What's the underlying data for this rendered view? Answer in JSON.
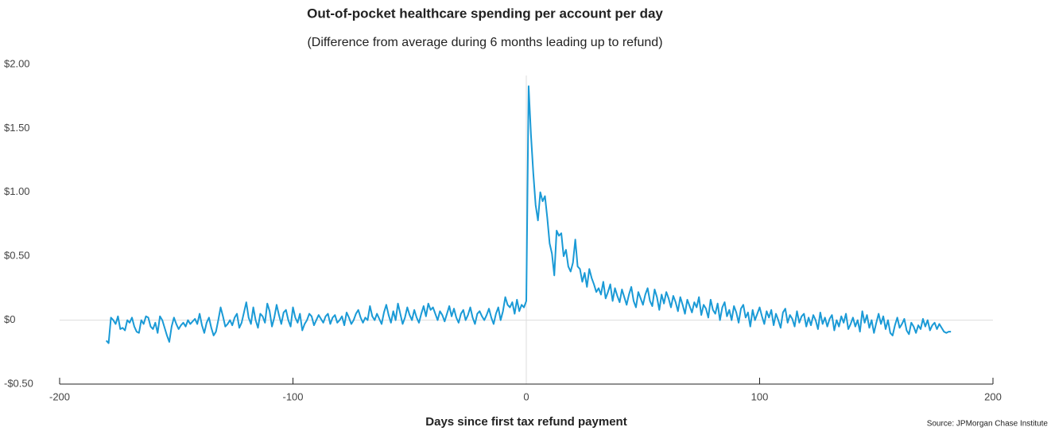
{
  "chart_data": {
    "type": "line",
    "title": "Out-of-pocket healthcare spending per account per day",
    "subtitle": "(Difference from average during 6 months leading up to refund)",
    "x_label": "Days since first tax refund payment",
    "source": "Source: JPMorgan Chase Institute",
    "xlim": [
      -200,
      200
    ],
    "xticks": [
      -200,
      -100,
      0,
      100,
      200
    ],
    "ylim": [
      -0.5,
      2.0
    ],
    "yticks": [
      {
        "value": 2.0,
        "label": "$2.00"
      },
      {
        "value": 1.5,
        "label": "$1.50"
      },
      {
        "value": 1.0,
        "label": "$1.00"
      },
      {
        "value": 0.5,
        "label": "$0.50"
      },
      {
        "value": 0,
        "label": "$0"
      },
      {
        "value": -0.5,
        "label": "-$0.50"
      }
    ],
    "color": "#1a9ad6",
    "x": [
      -180,
      -179,
      -178,
      -177,
      -176,
      -175,
      -174,
      -173,
      -172,
      -171,
      -170,
      -169,
      -168,
      -167,
      -166,
      -165,
      -164,
      -163,
      -162,
      -161,
      -160,
      -159,
      -158,
      -157,
      -156,
      -155,
      -154,
      -153,
      -152,
      -151,
      -150,
      -149,
      -148,
      -147,
      -146,
      -145,
      -144,
      -143,
      -142,
      -141,
      -140,
      -139,
      -138,
      -137,
      -136,
      -135,
      -134,
      -133,
      -132,
      -131,
      -130,
      -129,
      -128,
      -127,
      -126,
      -125,
      -124,
      -123,
      -122,
      -121,
      -120,
      -119,
      -118,
      -117,
      -116,
      -115,
      -114,
      -113,
      -112,
      -111,
      -110,
      -109,
      -108,
      -107,
      -106,
      -105,
      -104,
      -103,
      -102,
      -101,
      -100,
      -99,
      -98,
      -97,
      -96,
      -95,
      -94,
      -93,
      -92,
      -91,
      -90,
      -89,
      -88,
      -87,
      -86,
      -85,
      -84,
      -83,
      -82,
      -81,
      -80,
      -79,
      -78,
      -77,
      -76,
      -75,
      -74,
      -73,
      -72,
      -71,
      -70,
      -69,
      -68,
      -67,
      -66,
      -65,
      -64,
      -63,
      -62,
      -61,
      -60,
      -59,
      -58,
      -57,
      -56,
      -55,
      -54,
      -53,
      -52,
      -51,
      -50,
      -49,
      -48,
      -47,
      -46,
      -45,
      -44,
      -43,
      -42,
      -41,
      -40,
      -39,
      -38,
      -37,
      -36,
      -35,
      -34,
      -33,
      -32,
      -31,
      -30,
      -29,
      -28,
      -27,
      -26,
      -25,
      -24,
      -23,
      -22,
      -21,
      -20,
      -19,
      -18,
      -17,
      -16,
      -15,
      -14,
      -13,
      -12,
      -11,
      -10,
      -9,
      -8,
      -7,
      -6,
      -5,
      -4,
      -3,
      -2,
      -1,
      0,
      1,
      2,
      3,
      4,
      5,
      6,
      7,
      8,
      9,
      10,
      11,
      12,
      13,
      14,
      15,
      16,
      17,
      18,
      19,
      20,
      21,
      22,
      23,
      24,
      25,
      26,
      27,
      28,
      29,
      30,
      31,
      32,
      33,
      34,
      35,
      36,
      37,
      38,
      39,
      40,
      41,
      42,
      43,
      44,
      45,
      46,
      47,
      48,
      49,
      50,
      51,
      52,
      53,
      54,
      55,
      56,
      57,
      58,
      59,
      60,
      61,
      62,
      63,
      64,
      65,
      66,
      67,
      68,
      69,
      70,
      71,
      72,
      73,
      74,
      75,
      76,
      77,
      78,
      79,
      80,
      81,
      82,
      83,
      84,
      85,
      86,
      87,
      88,
      89,
      90,
      91,
      92,
      93,
      94,
      95,
      96,
      97,
      98,
      99,
      100,
      101,
      102,
      103,
      104,
      105,
      106,
      107,
      108,
      109,
      110,
      111,
      112,
      113,
      114,
      115,
      116,
      117,
      118,
      119,
      120,
      121,
      122,
      123,
      124,
      125,
      126,
      127,
      128,
      129,
      130,
      131,
      132,
      133,
      134,
      135,
      136,
      137,
      138,
      139,
      140,
      141,
      142,
      143,
      144,
      145,
      146,
      147,
      148,
      149,
      150,
      151,
      152,
      153,
      154,
      155,
      156,
      157,
      158,
      159,
      160,
      161,
      162,
      163,
      164,
      165,
      166,
      167,
      168,
      169,
      170,
      171,
      172,
      173,
      174,
      175,
      176,
      177,
      178,
      179,
      180,
      181,
      182
    ],
    "values": [
      -0.16,
      -0.18,
      0.02,
      0.0,
      -0.03,
      0.03,
      -0.07,
      -0.06,
      -0.08,
      0.0,
      -0.02,
      0.02,
      -0.05,
      -0.09,
      -0.1,
      0.0,
      -0.03,
      0.03,
      0.02,
      -0.05,
      -0.07,
      -0.02,
      -0.1,
      0.03,
      0.0,
      -0.06,
      -0.12,
      -0.17,
      -0.05,
      0.02,
      -0.03,
      -0.07,
      -0.04,
      -0.02,
      -0.05,
      0.0,
      -0.03,
      -0.01,
      0.01,
      -0.03,
      0.05,
      -0.04,
      -0.1,
      -0.02,
      0.02,
      -0.06,
      -0.12,
      -0.09,
      0.0,
      0.1,
      0.03,
      -0.05,
      -0.03,
      0.0,
      -0.04,
      0.02,
      0.05,
      -0.06,
      -0.02,
      0.06,
      0.14,
      0.02,
      -0.03,
      0.1,
      0.0,
      -0.06,
      0.05,
      0.03,
      -0.02,
      0.13,
      0.07,
      -0.05,
      0.02,
      0.12,
      0.04,
      -0.03,
      0.06,
      0.08,
      0.0,
      -0.05,
      0.1,
      0.02,
      -0.02,
      0.05,
      -0.08,
      -0.03,
      0.0,
      0.05,
      0.03,
      -0.04,
      0.0,
      0.04,
      0.01,
      -0.02,
      0.03,
      0.05,
      -0.03,
      0.02,
      0.04,
      -0.02,
      0.0,
      0.03,
      -0.04,
      0.06,
      0.02,
      -0.03,
      0.0,
      0.05,
      0.08,
      0.02,
      -0.02,
      0.02,
      0.0,
      0.11,
      0.03,
      0.0,
      0.05,
      0.01,
      -0.03,
      0.06,
      0.12,
      0.04,
      -0.02,
      0.07,
      0.0,
      0.13,
      0.05,
      -0.03,
      0.02,
      0.1,
      0.04,
      0.0,
      0.08,
      0.02,
      -0.02,
      0.05,
      0.11,
      0.03,
      0.13,
      0.08,
      0.1,
      0.05,
      0.0,
      0.07,
      0.04,
      -0.01,
      0.05,
      0.11,
      0.03,
      0.09,
      0.02,
      -0.02,
      0.05,
      0.08,
      0.0,
      0.04,
      0.1,
      0.02,
      -0.03,
      0.05,
      0.07,
      0.03,
      0.0,
      0.04,
      0.09,
      0.02,
      -0.03,
      0.05,
      0.1,
      0.0,
      0.07,
      0.18,
      0.12,
      0.1,
      0.14,
      0.05,
      0.16,
      0.07,
      0.12,
      0.1,
      0.15,
      1.83,
      1.45,
      1.15,
      0.9,
      0.78,
      1.0,
      0.93,
      0.97,
      0.8,
      0.6,
      0.52,
      0.35,
      0.7,
      0.66,
      0.68,
      0.5,
      0.55,
      0.42,
      0.38,
      0.45,
      0.63,
      0.42,
      0.4,
      0.3,
      0.37,
      0.26,
      0.4,
      0.33,
      0.28,
      0.22,
      0.25,
      0.2,
      0.3,
      0.17,
      0.22,
      0.28,
      0.15,
      0.25,
      0.19,
      0.14,
      0.24,
      0.18,
      0.12,
      0.2,
      0.26,
      0.15,
      0.1,
      0.22,
      0.17,
      0.12,
      0.2,
      0.25,
      0.15,
      0.11,
      0.24,
      0.18,
      0.08,
      0.2,
      0.13,
      0.22,
      0.17,
      0.1,
      0.19,
      0.14,
      0.07,
      0.18,
      0.12,
      0.05,
      0.16,
      0.11,
      0.06,
      0.14,
      0.1,
      0.18,
      0.04,
      0.12,
      0.09,
      0.02,
      0.16,
      0.08,
      0.05,
      0.13,
      0.0,
      0.1,
      0.14,
      0.03,
      0.08,
      0.0,
      0.11,
      0.06,
      -0.02,
      0.09,
      0.12,
      0.02,
      0.06,
      -0.05,
      0.08,
      0.0,
      0.05,
      0.1,
      0.03,
      -0.03,
      0.07,
      0.02,
      0.08,
      -0.04,
      0.05,
      0.0,
      -0.06,
      0.06,
      0.09,
      -0.02,
      0.04,
      0.01,
      -0.05,
      0.07,
      -0.02,
      0.03,
      0.05,
      -0.05,
      0.02,
      -0.04,
      0.04,
      0.0,
      -0.07,
      0.06,
      -0.03,
      0.02,
      -0.05,
      0.01,
      0.04,
      -0.08,
      0.0,
      -0.05,
      0.03,
      -0.02,
      0.05,
      -0.07,
      -0.03,
      0.02,
      -0.05,
      0.0,
      -0.09,
      0.07,
      -0.02,
      0.04,
      -0.06,
      0.0,
      -0.1,
      -0.02,
      0.05,
      -0.03,
      0.03,
      -0.07,
      0.0,
      -0.1,
      -0.12,
      -0.04,
      0.02,
      -0.06,
      -0.03,
      0.01,
      -0.08,
      -0.11,
      -0.02,
      -0.05,
      -0.1,
      -0.04,
      -0.07,
      0.01,
      -0.05,
      0.0,
      -0.08,
      -0.04,
      -0.02,
      -0.07,
      -0.03,
      -0.06,
      -0.09,
      -0.1,
      -0.09,
      -0.09
    ]
  }
}
